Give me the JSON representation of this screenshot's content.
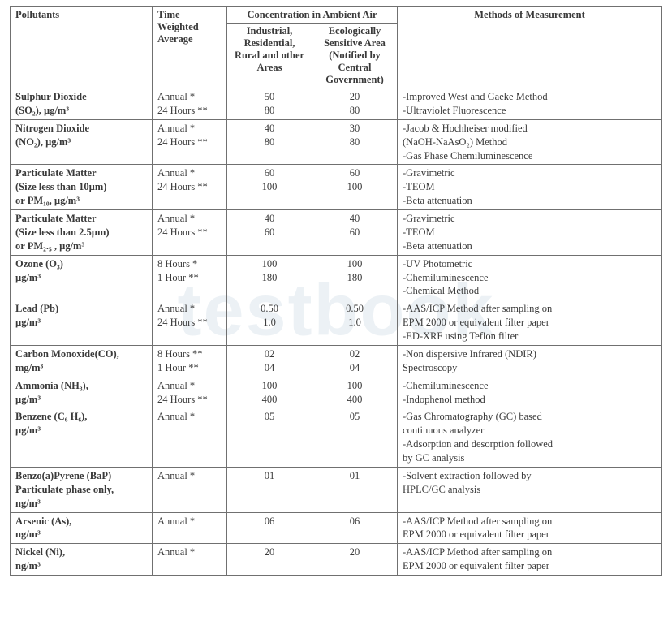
{
  "watermark": "testbook",
  "headers": {
    "pollutants": "Pollutants",
    "time": "Time Weighted Average",
    "concentration_group": "Concentration in Ambient Air",
    "industrial": "Industrial, Residential, Rural and other Areas",
    "ecological": "Ecologically Sensitive Area (Notified by Central Government)",
    "methods": "Methods of Measurement"
  },
  "rows": [
    {
      "pollutant": [
        "Sulphur Dioxide",
        "(SO₂), µg/m³"
      ],
      "time": [
        "Annual *",
        "24 Hours **"
      ],
      "industrial": [
        "50",
        "80"
      ],
      "ecological": [
        "20",
        "80"
      ],
      "methods": [
        "-Improved West and Gaeke Method",
        "-Ultraviolet Fluorescence"
      ]
    },
    {
      "pollutant": [
        "Nitrogen Dioxide",
        "(NO₂), µg/m³"
      ],
      "time": [
        "Annual *",
        "24 Hours **"
      ],
      "industrial": [
        "40",
        "80"
      ],
      "ecological": [
        "30",
        "80"
      ],
      "methods": [
        "-Jacob & Hochheiser modified",
        " (NaOH-NaAsO₂) Method",
        "-Gas Phase Chemiluminescence"
      ]
    },
    {
      "pollutant": [
        "Particulate Matter",
        "(Size less than 10µm)",
        "or PM₁₀, µg/m³"
      ],
      "time": [
        "Annual *",
        "24 Hours **"
      ],
      "industrial": [
        "60",
        "100"
      ],
      "ecological": [
        "60",
        "100"
      ],
      "methods": [
        "-Gravimetric",
        "-TEOM",
        "-Beta attenuation"
      ]
    },
    {
      "pollutant": [
        "Particulate Matter",
        "(Size less than 2.5µm)",
        "or PM₂.₅ , µg/m³"
      ],
      "time": [
        "Annual *",
        "24 Hours **"
      ],
      "industrial": [
        "40",
        "60"
      ],
      "ecological": [
        "40",
        "60"
      ],
      "methods": [
        "-Gravimetric",
        "-TEOM",
        "-Beta attenuation"
      ]
    },
    {
      "pollutant": [
        "Ozone (O₃)",
        " µg/m³"
      ],
      "time": [
        "8 Hours *",
        "1 Hour **"
      ],
      "industrial": [
        "100",
        "180"
      ],
      "ecological": [
        "100",
        "180"
      ],
      "methods": [
        "-UV Photometric",
        "-Chemiluminescence",
        "-Chemical Method"
      ]
    },
    {
      "pollutant": [
        "Lead (Pb)",
        "µg/m³"
      ],
      "time": [
        "Annual *",
        "24 Hours **"
      ],
      "industrial": [
        "0.50",
        "1.0"
      ],
      "ecological": [
        "0.50",
        "1.0"
      ],
      "methods": [
        "-AAS/ICP Method after  sampling on",
        "EPM 2000 or equivalent filter paper",
        "-ED-XRF using Teflon filter"
      ]
    },
    {
      "pollutant": [
        "Carbon Monoxide(CO),",
        "mg/m³"
      ],
      "time": [
        "8 Hours **",
        "1 Hour **"
      ],
      "industrial": [
        "02",
        "04"
      ],
      "ecological": [
        "02",
        "04"
      ],
      "methods": [
        "-Non dispersive Infrared (NDIR)",
        "Spectroscopy"
      ]
    },
    {
      "pollutant": [
        "Ammonia (NH₃),",
        "µg/m³"
      ],
      "time": [
        "Annual *",
        "24 Hours **"
      ],
      "industrial": [
        "100",
        "400"
      ],
      "ecological": [
        "100",
        "400"
      ],
      "methods": [
        "-Chemiluminescence",
        "-Indophenol method"
      ]
    },
    {
      "pollutant": [
        "Benzene (C₆ H₆),",
        "µg/m³"
      ],
      "time": [
        "Annual *"
      ],
      "industrial": [
        "05"
      ],
      "ecological": [
        "05"
      ],
      "methods": [
        "-Gas Chromatography  (GC) based",
        "continuous analyzer",
        "-Adsorption and desorption followed",
        "by GC analysis"
      ]
    },
    {
      "pollutant": [
        "Benzo(a)Pyrene (BaP)",
        "Particulate phase only,",
        "ng/m³"
      ],
      "time": [
        "Annual *"
      ],
      "industrial": [
        "01"
      ],
      "ecological": [
        "01"
      ],
      "methods": [
        "-Solvent extraction followed by",
        "HPLC/GC analysis"
      ]
    },
    {
      "pollutant": [
        "Arsenic (As),",
        " ng/m³"
      ],
      "time": [
        "Annual *"
      ],
      "industrial": [
        "06"
      ],
      "ecological": [
        "06"
      ],
      "methods": [
        "-AAS/ICP Method after  sampling on",
        "EPM 2000 or equivalent filter paper"
      ]
    },
    {
      "pollutant": [
        "Nickel (Ni),",
        "ng/m³"
      ],
      "time": [
        "Annual *"
      ],
      "industrial": [
        "20"
      ],
      "ecological": [
        "20"
      ],
      "methods": [
        "-AAS/ICP Method after  sampling on",
        "EPM 2000 or equivalent filter paper"
      ]
    }
  ]
}
